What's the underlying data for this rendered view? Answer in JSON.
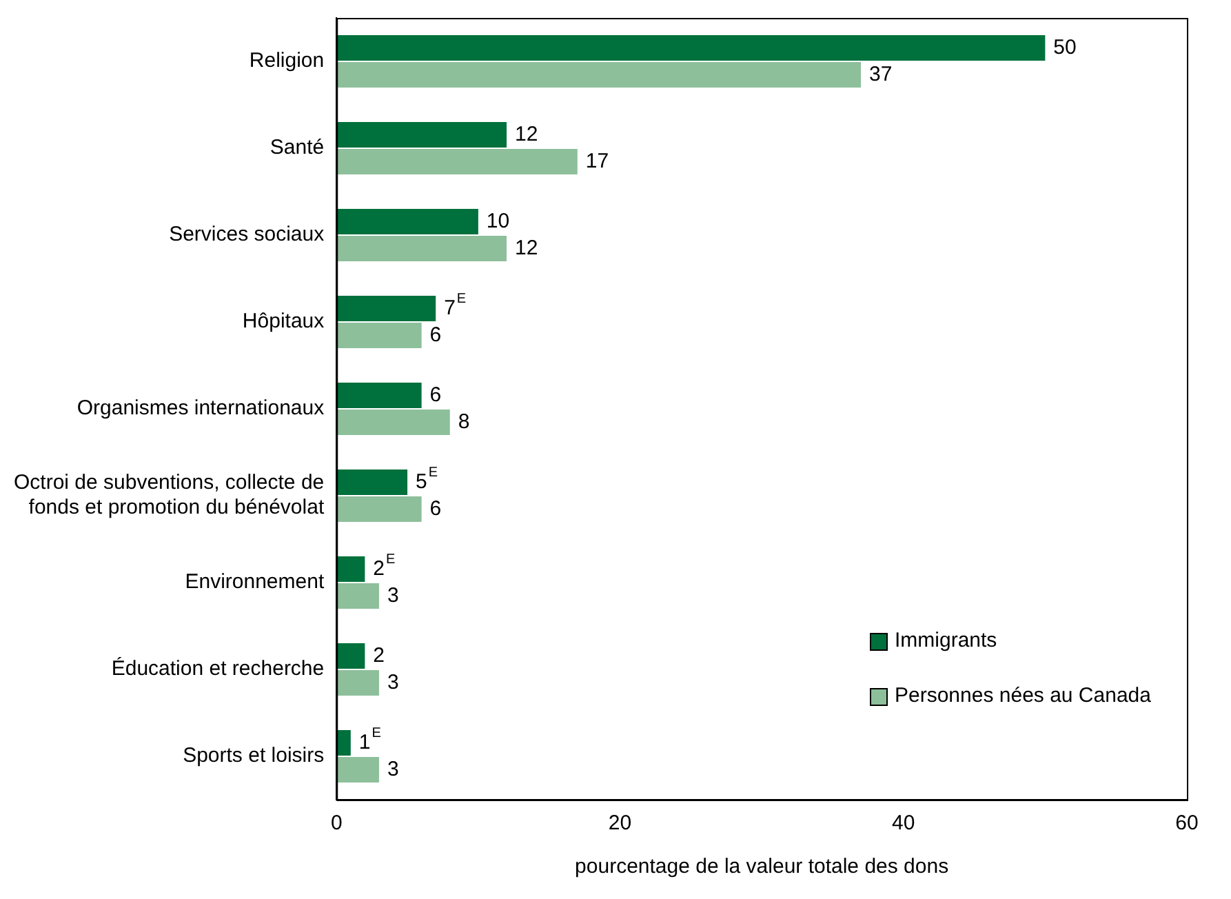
{
  "chart_data": {
    "type": "bar",
    "orientation": "horizontal",
    "xlabel": "pourcentage de la valeur totale des dons",
    "categories": [
      "Religion",
      "Santé",
      "Services sociaux",
      "Hôpitaux",
      "Organismes internationaux",
      "Octroi de subventions, collecte de fonds et promotion du bénévolat",
      "Environnement",
      "Éducation et recherche",
      "Sports et loisirs"
    ],
    "series": [
      {
        "name": "Immigrants",
        "color": "#00703c",
        "values": [
          50,
          12,
          10,
          7,
          6,
          5,
          2,
          2,
          1
        ],
        "value_labels": [
          "50",
          "12",
          "10",
          "7$^{E}$",
          "6",
          "5$^{E}$",
          "2$^{E}$",
          "2",
          "1$^{E}$"
        ]
      },
      {
        "name": "Personnes nées au Canada",
        "color": "#8dbf9b",
        "values": [
          37,
          17,
          12,
          6,
          8,
          6,
          3,
          3,
          3
        ],
        "value_labels": [
          "37",
          "17",
          "12",
          "6",
          "8",
          "6",
          "3",
          "3",
          "3"
        ]
      }
    ],
    "xlim": [
      0,
      60
    ],
    "xticks": [
      0,
      20,
      40,
      60
    ],
    "grid": false,
    "legend": "bottom right"
  }
}
